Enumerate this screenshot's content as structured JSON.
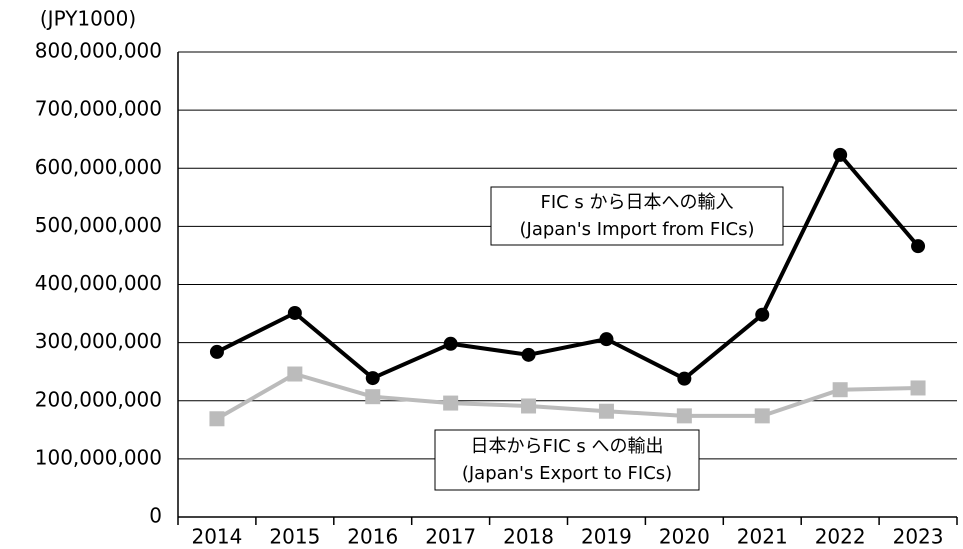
{
  "chart_data": {
    "type": "line",
    "y_axis_label": "(JPY1000)",
    "categories": [
      "2014",
      "2015",
      "2016",
      "2017",
      "2018",
      "2019",
      "2020",
      "2021",
      "2022",
      "2023"
    ],
    "series": [
      {
        "name": "FIC s から日本への輸入",
        "name_en": "(Japan's Import from FICs)",
        "color": "#000000",
        "marker": "circle",
        "values": [
          284000000,
          351000000,
          239000000,
          298000000,
          279000000,
          306000000,
          238000000,
          348000000,
          623000000,
          466000000
        ]
      },
      {
        "name": "日本からFIC s への輸出",
        "name_en": "(Japan's Export to FICs)",
        "color": "#bbbbbb",
        "marker": "square",
        "values": [
          169000000,
          246000000,
          207000000,
          196000000,
          191000000,
          182000000,
          174000000,
          174000000,
          219000000,
          222000000
        ]
      }
    ],
    "ylim": [
      0,
      800000000
    ],
    "yticks": [
      0,
      {
        "value": 100000000,
        "label": "100,000,000"
      },
      {
        "value": 200000000,
        "label": "200,000,000"
      },
      {
        "value": 300000000,
        "label": "300,000,000"
      },
      {
        "value": 400000000,
        "label": "400,000,000"
      },
      {
        "value": 500000000,
        "label": "500,000,000"
      },
      {
        "value": 600000000,
        "label": "600,000,000"
      },
      {
        "value": 700000000,
        "label": "700,000,000"
      },
      {
        "value": 800000000,
        "label": "800,000,000"
      }
    ],
    "grid": true
  }
}
